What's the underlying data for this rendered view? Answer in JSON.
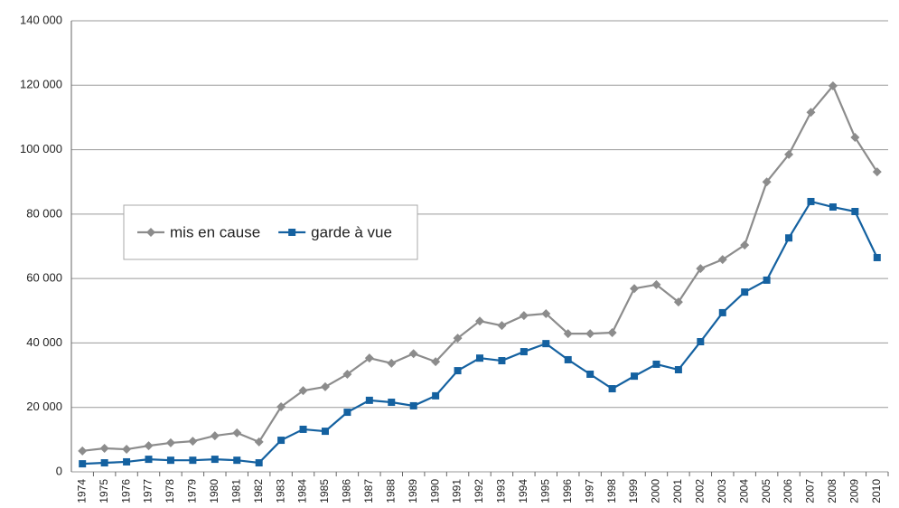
{
  "chart_data": {
    "type": "line",
    "categories": [
      "1974",
      "1975",
      "1976",
      "1977",
      "1978",
      "1979",
      "1980",
      "1981",
      "1982",
      "1983",
      "1984",
      "1985",
      "1986",
      "1987",
      "1988",
      "1989",
      "1990",
      "1991",
      "1992",
      "1993",
      "1994",
      "1995",
      "1996",
      "1997",
      "1998",
      "1999",
      "2000",
      "2001",
      "2002",
      "2003",
      "2004",
      "2005",
      "2006",
      "2007",
      "2008",
      "2009",
      "2010"
    ],
    "series": [
      {
        "name": "mis en cause",
        "color": "#8c8c8c",
        "marker": "diamond",
        "values": [
          6500,
          7300,
          7000,
          8100,
          9000,
          9500,
          11200,
          12100,
          9300,
          20200,
          25200,
          26400,
          30300,
          35300,
          33700,
          36700,
          34200,
          41500,
          46800,
          45400,
          48500,
          49100,
          42900,
          42900,
          43200,
          56900,
          58100,
          52700,
          63100,
          65900,
          70400,
          90000,
          98500,
          111600,
          119800,
          103800,
          93100
        ]
      },
      {
        "name": "garde à vue",
        "color": "#1461a0",
        "marker": "square",
        "values": [
          2500,
          2800,
          3100,
          3900,
          3600,
          3600,
          3900,
          3600,
          2800,
          9800,
          13200,
          12600,
          18500,
          22200,
          21600,
          20500,
          23600,
          31400,
          35300,
          34500,
          37300,
          39800,
          34800,
          30300,
          25800,
          29700,
          33400,
          31700,
          40400,
          49400,
          55800,
          59500,
          72600,
          83900,
          82200,
          80800,
          66500
        ]
      }
    ],
    "ylim": [
      0,
      140000
    ],
    "yticks": [
      0,
      {
        "value": 20000,
        "label": "20 000"
      },
      {
        "value": 40000,
        "label": "40 000"
      },
      {
        "value": 60000,
        "label": "60 000"
      },
      {
        "value": 80000,
        "label": "80 000"
      },
      {
        "value": 100000,
        "label": "100 000"
      },
      {
        "value": 120000,
        "label": "120 000"
      },
      {
        "value": 140000,
        "label": "140 000"
      }
    ],
    "grid": true,
    "legend": "left"
  }
}
